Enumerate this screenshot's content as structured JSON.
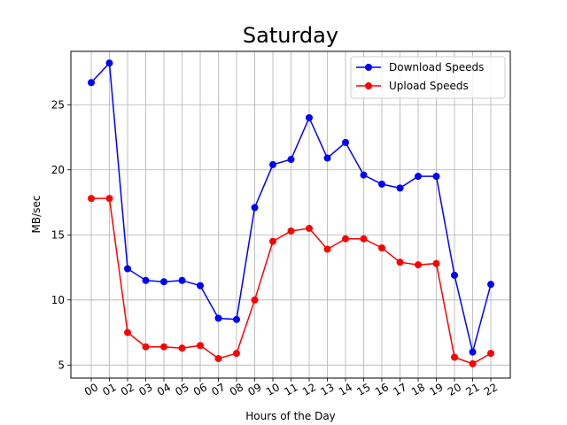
{
  "chart_data": {
    "type": "line",
    "title": "Saturday",
    "xlabel": "Hours of the Day",
    "ylabel": "MB/sec",
    "categories": [
      "00",
      "01",
      "02",
      "03",
      "04",
      "05",
      "06",
      "07",
      "08",
      "09",
      "10",
      "11",
      "12",
      "13",
      "14",
      "15",
      "16",
      "17",
      "18",
      "19",
      "20",
      "21",
      "22"
    ],
    "ylim": [
      4.0,
      29.1
    ],
    "yticks": [
      5,
      10,
      15,
      20,
      25
    ],
    "grid": true,
    "legend_position": "upper right",
    "series": [
      {
        "name": "Download Speeds",
        "color": "#0000ff",
        "values": [
          26.7,
          28.2,
          12.4,
          11.5,
          11.4,
          11.5,
          11.1,
          8.6,
          8.5,
          17.1,
          20.4,
          20.8,
          24.0,
          20.9,
          22.1,
          19.6,
          18.9,
          18.6,
          19.5,
          19.5,
          11.9,
          6.0,
          11.2
        ]
      },
      {
        "name": "Upload Speeds",
        "color": "#ff0000",
        "values": [
          17.8,
          17.8,
          7.5,
          6.4,
          6.4,
          6.3,
          6.5,
          5.5,
          5.9,
          10.0,
          14.5,
          15.3,
          15.5,
          13.9,
          14.7,
          14.7,
          14.0,
          12.9,
          12.7,
          12.8,
          5.6,
          5.1,
          5.9
        ]
      }
    ]
  }
}
